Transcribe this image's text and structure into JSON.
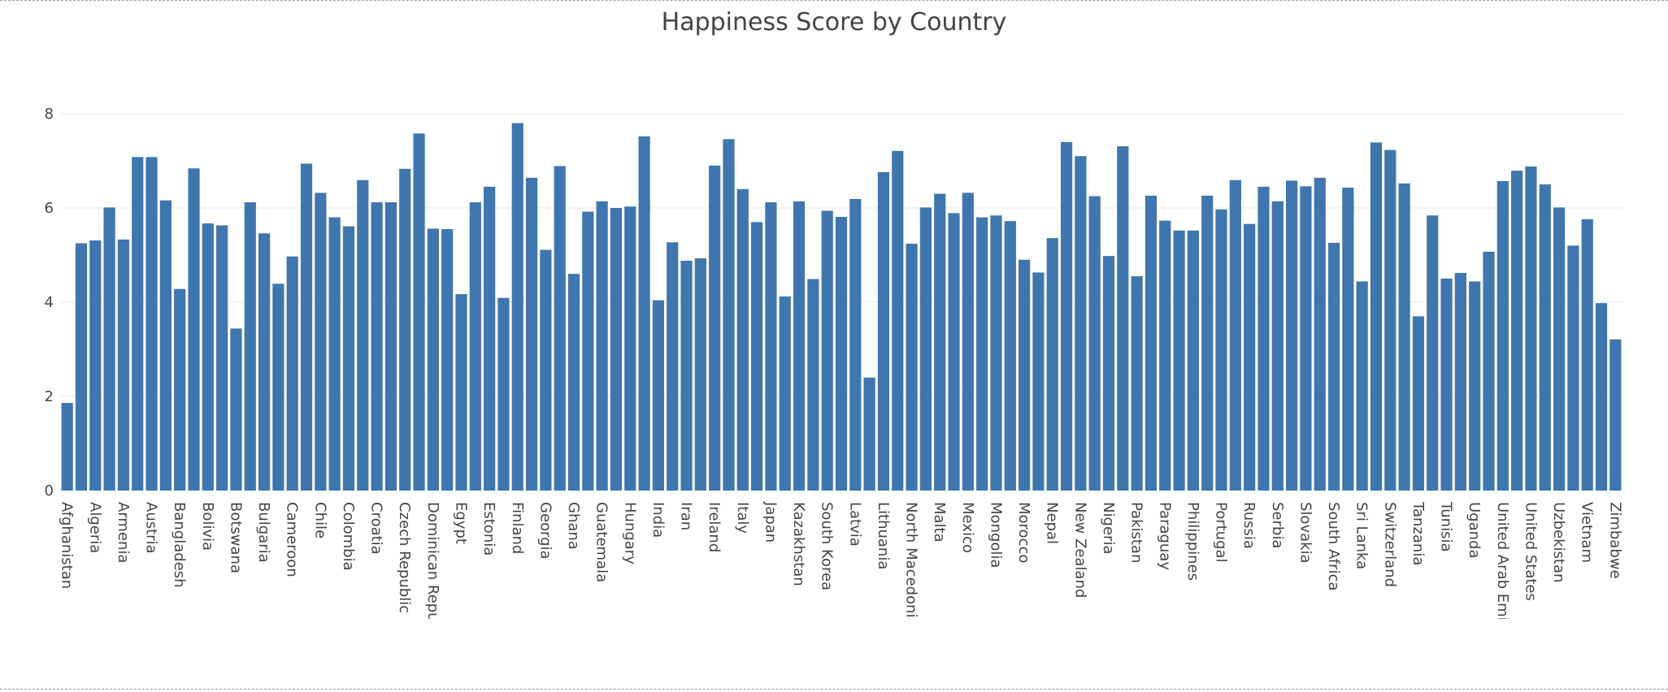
{
  "chart_data": {
    "type": "bar",
    "title": "Happiness Score by Country",
    "xlabel": "",
    "ylabel": "",
    "ylim": [
      0,
      8.6
    ],
    "yticks": [
      0,
      2,
      4,
      6,
      8
    ],
    "grid": true,
    "bar_color": "#3f76ae",
    "category_labels": [
      "Afghanistan",
      "Algeria",
      "Armenia",
      "Austria",
      "Bangladesh",
      "Bolivia",
      "Botswana",
      "Bulgaria",
      "Cameroon",
      "Chile",
      "Colombia",
      "Croatia",
      "Czech Republic",
      "Dominican Republic",
      "Egypt",
      "Estonia",
      "Finland",
      "Georgia",
      "Ghana",
      "Guatemala",
      "Hungary",
      "India",
      "Iran",
      "Ireland",
      "Italy",
      "Japan",
      "Kazakhstan",
      "South Korea",
      "Latvia",
      "Lithuania",
      "North Macedonia",
      "Malta",
      "Mexico",
      "Mongolia",
      "Morocco",
      "Nepal",
      "New Zealand",
      "Nigeria",
      "Pakistan",
      "Paraguay",
      "Philippines",
      "Portugal",
      "Russia",
      "Serbia",
      "Slovakia",
      "South Africa",
      "Sri Lanka",
      "Switzerland",
      "Tanzania",
      "Tunisia",
      "Uganda",
      "United Arab Emirates",
      "United States",
      "Uzbekistan",
      "Vietnam",
      "Zimbabwe"
    ],
    "values": [
      1.86,
      5.25,
      5.31,
      6.01,
      5.33,
      7.08,
      7.08,
      6.16,
      4.28,
      6.84,
      5.67,
      5.63,
      3.44,
      6.12,
      5.46,
      4.39,
      4.97,
      6.94,
      6.32,
      5.8,
      5.61,
      6.59,
      6.12,
      6.12,
      6.83,
      7.58,
      5.56,
      5.55,
      4.17,
      6.12,
      6.45,
      4.09,
      7.8,
      6.64,
      5.11,
      6.89,
      4.6,
      5.92,
      6.14,
      6.0,
      6.03,
      7.52,
      4.04,
      5.27,
      4.88,
      4.93,
      6.9,
      7.46,
      6.4,
      5.7,
      6.12,
      4.12,
      6.14,
      4.49,
      5.94,
      5.81,
      6.19,
      2.4,
      6.76,
      7.21,
      5.24,
      6.01,
      6.3,
      5.89,
      6.32,
      5.8,
      5.84,
      5.72,
      4.9,
      4.63,
      5.36,
      7.4,
      7.1,
      6.25,
      4.98,
      7.31,
      4.55,
      6.26,
      5.73,
      5.52,
      5.52,
      6.26,
      5.97,
      6.59,
      5.66,
      6.45,
      6.14,
      6.58,
      6.46,
      6.64,
      5.26,
      6.43,
      4.44,
      7.39,
      7.23,
      6.52,
      3.7,
      5.84,
      4.5,
      4.62,
      4.44,
      5.07,
      6.57,
      6.79,
      6.88,
      6.5,
      6.01,
      5.2,
      5.76,
      3.98,
      3.21
    ]
  }
}
